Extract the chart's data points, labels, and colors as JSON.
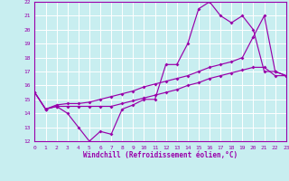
{
  "xlabel": "Windchill (Refroidissement éolien,°C)",
  "background_color": "#c8eef0",
  "grid_color": "#ffffff",
  "line_color": "#9900aa",
  "ylim": [
    12,
    22
  ],
  "xlim": [
    0,
    23
  ],
  "yticks": [
    12,
    13,
    14,
    15,
    16,
    17,
    18,
    19,
    20,
    21,
    22
  ],
  "xticks": [
    0,
    1,
    2,
    3,
    4,
    5,
    6,
    7,
    8,
    9,
    10,
    11,
    12,
    13,
    14,
    15,
    16,
    17,
    18,
    19,
    20,
    21,
    22,
    23
  ],
  "line1_x": [
    0,
    1,
    2,
    3,
    4,
    5,
    6,
    7,
    8,
    9,
    10,
    11,
    12,
    13,
    14,
    15,
    16,
    17,
    18,
    19,
    20,
    21,
    22,
    23
  ],
  "line1_y": [
    15.5,
    14.3,
    14.5,
    14.0,
    13.0,
    12.0,
    12.7,
    12.5,
    14.3,
    14.6,
    15.0,
    15.0,
    17.5,
    17.5,
    19.0,
    21.5,
    22.0,
    21.0,
    20.5,
    21.0,
    20.0,
    17.0,
    17.0,
    16.7
  ],
  "line2_x": [
    0,
    1,
    2,
    3,
    4,
    5,
    6,
    7,
    8,
    9,
    10,
    11,
    12,
    13,
    14,
    15,
    16,
    17,
    18,
    19,
    20,
    21,
    22,
    23
  ],
  "line2_y": [
    15.5,
    14.3,
    14.6,
    14.7,
    14.7,
    14.8,
    15.0,
    15.2,
    15.4,
    15.6,
    15.9,
    16.1,
    16.3,
    16.5,
    16.7,
    17.0,
    17.3,
    17.5,
    17.7,
    18.0,
    19.5,
    21.0,
    17.0,
    16.7
  ],
  "line3_x": [
    0,
    1,
    2,
    3,
    4,
    5,
    6,
    7,
    8,
    9,
    10,
    11,
    12,
    13,
    14,
    15,
    16,
    17,
    18,
    19,
    20,
    21,
    22,
    23
  ],
  "line3_y": [
    15.5,
    14.3,
    14.5,
    14.5,
    14.5,
    14.5,
    14.5,
    14.5,
    14.7,
    14.9,
    15.1,
    15.3,
    15.5,
    15.7,
    16.0,
    16.2,
    16.5,
    16.7,
    16.9,
    17.1,
    17.3,
    17.3,
    16.7,
    16.7
  ]
}
